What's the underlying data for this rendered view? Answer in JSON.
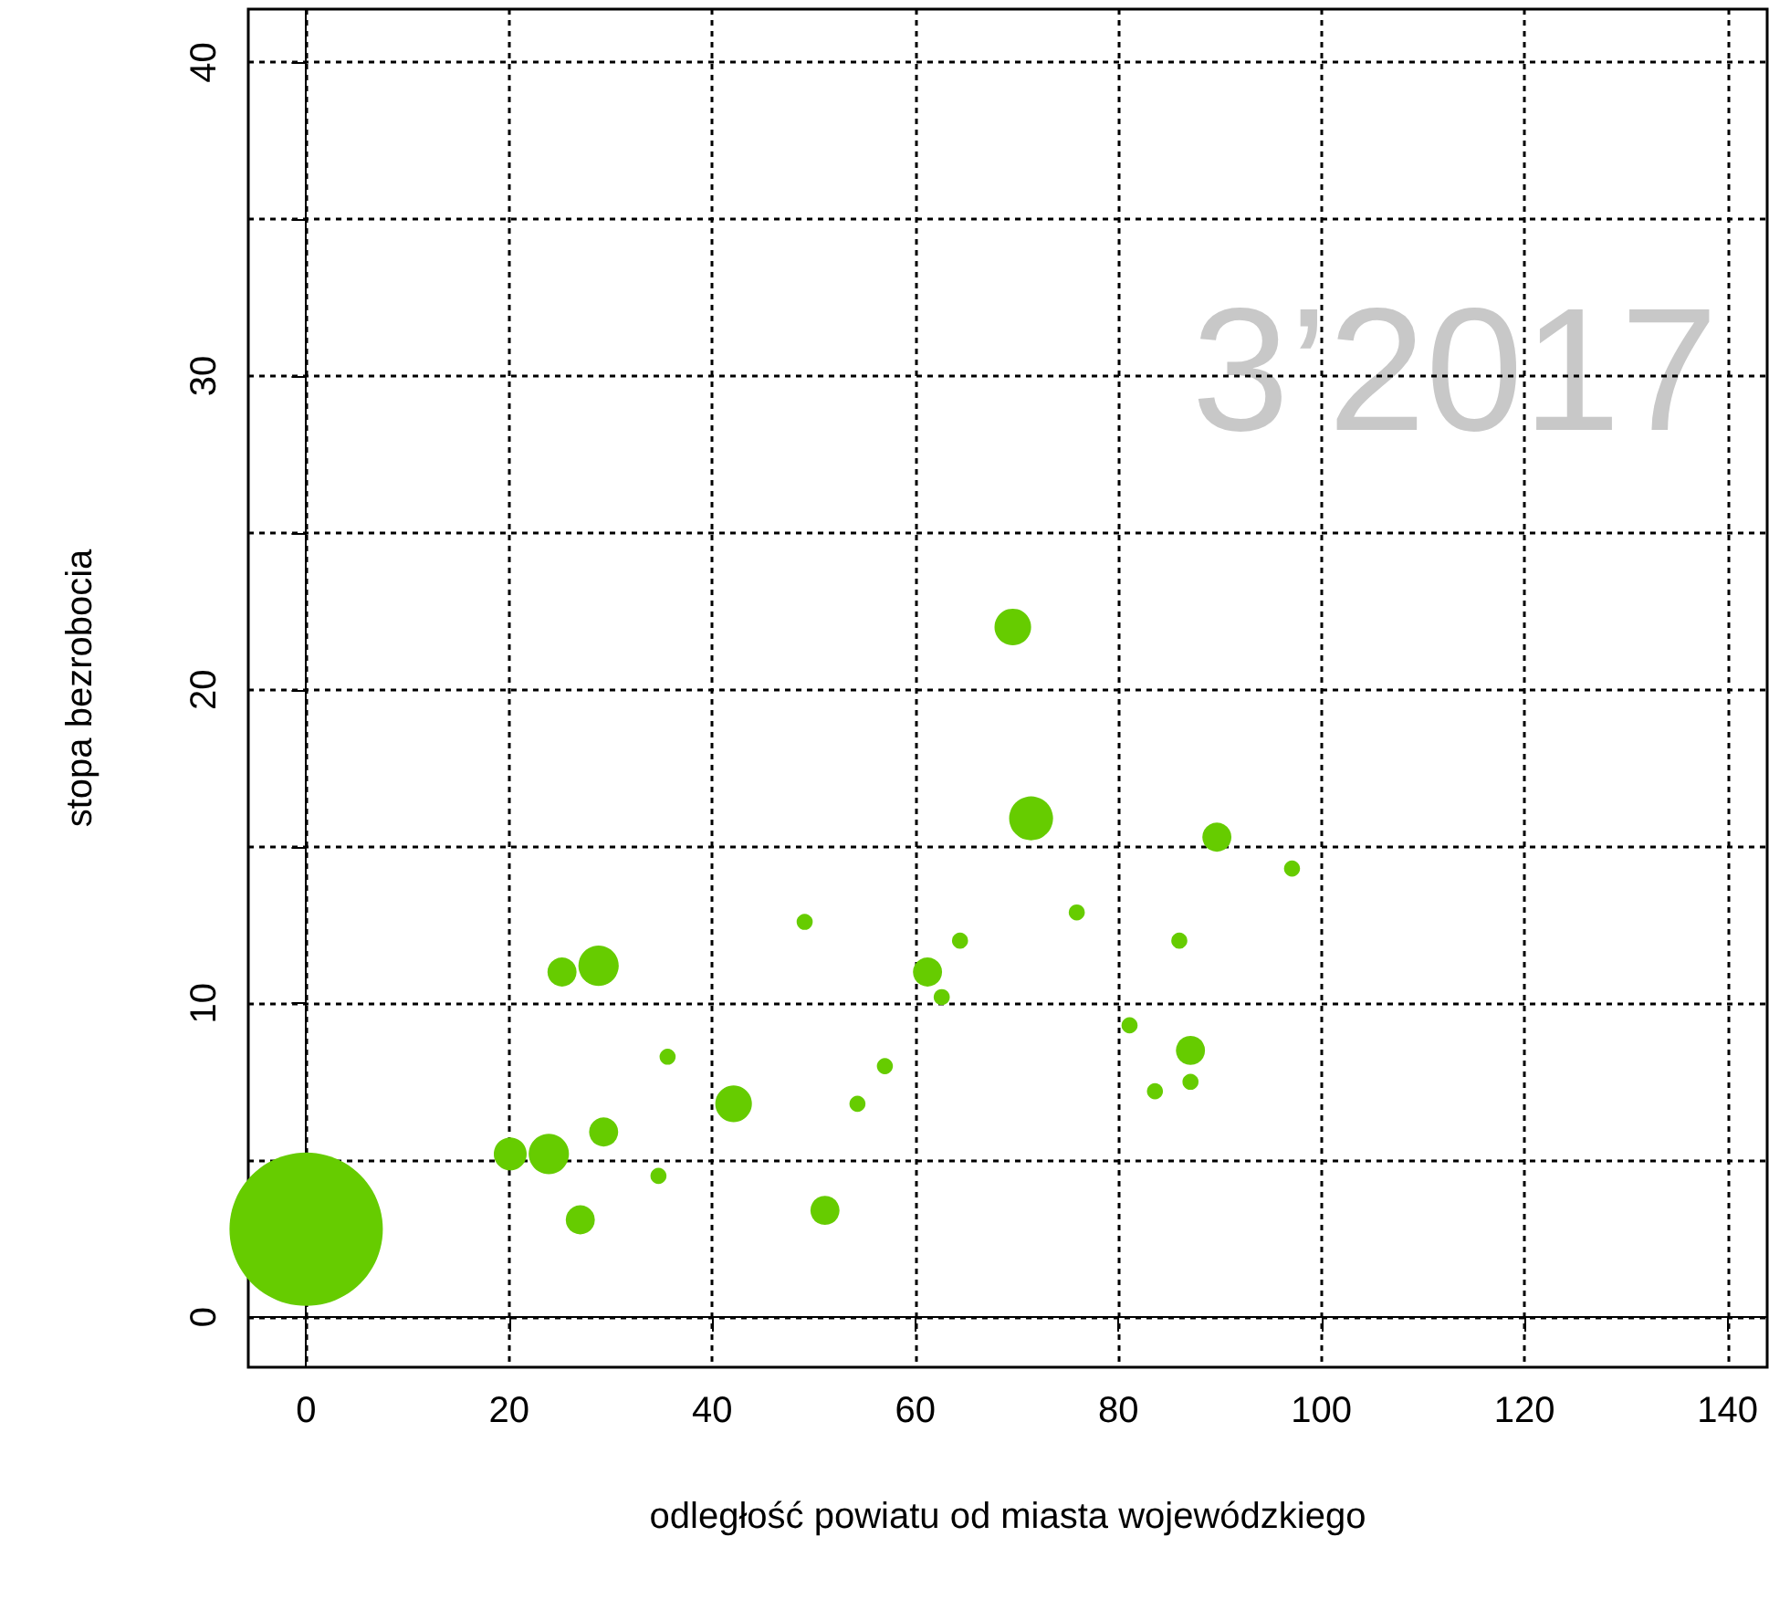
{
  "chart_data": {
    "type": "bubble",
    "xlabel": "odległość powiatu od miasta wojewódzkiego",
    "ylabel": "stopa bezrobocia",
    "annotations": [
      "3’2017"
    ],
    "xlim": [
      -5.7,
      143.9
    ],
    "ylim": [
      -1.6,
      41.7
    ],
    "xticks": [
      0,
      20,
      40,
      60,
      80,
      100,
      120,
      140
    ],
    "yticks": [
      0,
      {
        "value": 5,
        "label": null
      },
      10,
      {
        "value": 15,
        "label": null
      },
      20,
      {
        "value": 25,
        "label": null
      },
      30,
      {
        "value": 35,
        "label": null
      },
      40
    ],
    "grid": true,
    "marker": "circle",
    "series": [
      {
        "color": "#66cc00",
        "x": [
          0,
          20.1,
          23.9,
          27,
          29.3,
          34.7,
          35.6,
          25.2,
          28.8,
          42.1,
          49.1,
          51.1,
          54.3,
          57,
          61.2,
          62.6,
          64.4,
          69.6,
          71.4,
          75.9,
          81.1,
          83.6,
          86,
          87.1,
          87.1,
          89.7,
          97.1
        ],
        "values": [
          2.8,
          5.2,
          5.2,
          3.1,
          5.9,
          4.5,
          8.3,
          11,
          11.2,
          6.8,
          12.6,
          3.4,
          6.8,
          8,
          11,
          10.2,
          12,
          22,
          15.9,
          12.9,
          9.3,
          7.2,
          12,
          8.5,
          7.5,
          15.3,
          14.3
        ],
        "sizes": [
          1,
          0.046,
          0.069,
          0.036,
          0.036,
          0.011,
          0.011,
          0.036,
          0.069,
          0.057,
          0.011,
          0.036,
          0.011,
          0.011,
          0.036,
          0.011,
          0.011,
          0.057,
          0.082,
          0.011,
          0.011,
          0.011,
          0.011,
          0.036,
          0.011,
          0.036,
          0.011
        ]
      }
    ]
  }
}
